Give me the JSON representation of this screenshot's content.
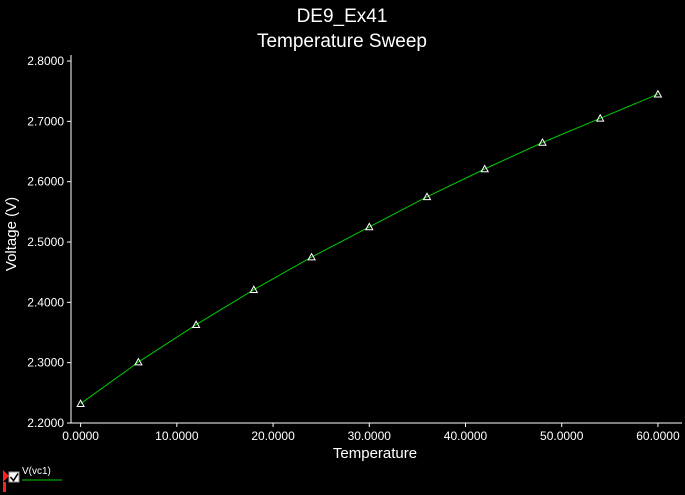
{
  "chart_data": {
    "type": "line",
    "title": "DE9_Ex41",
    "subtitle": "Temperature Sweep",
    "xlabel": "Temperature",
    "ylabel": "Voltage (V)",
    "xlim": [
      -1,
      62.5
    ],
    "ylim": [
      2.2,
      2.81
    ],
    "x_ticks": [
      0,
      10,
      20,
      30,
      40,
      50,
      60
    ],
    "x_tick_labels": [
      "0.0000",
      "10.0000",
      "20.0000",
      "30.0000",
      "40.0000",
      "50.0000",
      "60.0000"
    ],
    "y_ticks": [
      2.2,
      2.3,
      2.4,
      2.5,
      2.6,
      2.7,
      2.8
    ],
    "y_tick_labels": [
      "2.2000",
      "2.3000",
      "2.4000",
      "2.5000",
      "2.6000",
      "2.7000",
      "2.8000"
    ],
    "grid": false,
    "legend_position": "bottom-left",
    "series": [
      {
        "name": "V(vc1)",
        "color": "#00cc00",
        "marker": "triangle",
        "marker_color": "#ffffff",
        "x": [
          0,
          6,
          12,
          18,
          24,
          30,
          36,
          42,
          48,
          54,
          60
        ],
        "y": [
          2.232,
          2.301,
          2.363,
          2.421,
          2.475,
          2.525,
          2.575,
          2.621,
          2.665,
          2.705,
          2.745
        ]
      }
    ]
  },
  "colors": {
    "background": "#000000",
    "axis": "#ffffff",
    "text": "#ffffff"
  },
  "icons": {
    "legend_toggle": "checkbox-checked-icon",
    "legend_flag": "red-marker-icon"
  }
}
